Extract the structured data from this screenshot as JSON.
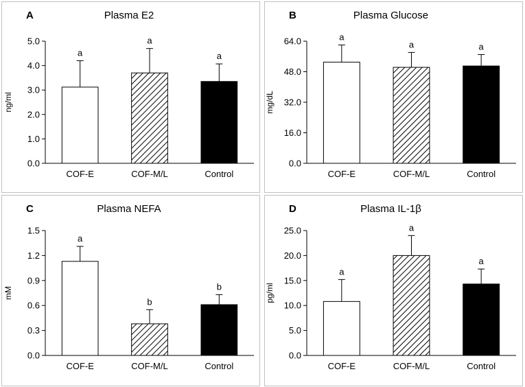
{
  "figure": {
    "colors": {
      "background": "#ffffff",
      "frame": "#bfbfbf",
      "ink": "#000000"
    }
  },
  "chart_data": [
    {
      "panel": "A",
      "type": "bar",
      "title": "Plasma E2",
      "ylabel": "ng/ml",
      "xlabel": "",
      "categories": [
        "COF-E",
        "COF-M/L",
        "Control"
      ],
      "values": [
        3.12,
        3.7,
        3.35
      ],
      "errors": [
        1.08,
        1.0,
        0.72
      ],
      "significance": [
        "a",
        "a",
        "a"
      ],
      "fills": [
        "white",
        "hatch",
        "black"
      ],
      "ylim": [
        0,
        5
      ],
      "yticks": [
        "0.0",
        "1.0",
        "2.0",
        "3.0",
        "4.0",
        "5.0"
      ],
      "grid": false
    },
    {
      "panel": "B",
      "type": "bar",
      "title": "Plasma Glucose",
      "ylabel": "mg/dL",
      "xlabel": "",
      "categories": [
        "COF-E",
        "COF-M/L",
        "Control"
      ],
      "values": [
        53,
        50.3,
        51
      ],
      "errors": [
        9,
        7.8,
        6
      ],
      "significance": [
        "a",
        "a",
        "a"
      ],
      "fills": [
        "white",
        "hatch",
        "black"
      ],
      "ylim": [
        0,
        64
      ],
      "yticks": [
        "0.0",
        "16.0",
        "32.0",
        "48.0",
        "64.0"
      ],
      "grid": false
    },
    {
      "panel": "C",
      "type": "bar",
      "title": "Plasma NEFA",
      "ylabel": "mM",
      "xlabel": "",
      "categories": [
        "COF-E",
        "COF-M/L",
        "Control"
      ],
      "values": [
        1.13,
        0.38,
        0.61
      ],
      "errors": [
        0.18,
        0.17,
        0.12
      ],
      "significance": [
        "a",
        "b",
        "b"
      ],
      "fills": [
        "white",
        "hatch",
        "black"
      ],
      "ylim": [
        0,
        1.5
      ],
      "yticks": [
        "0.0",
        "0.3",
        "0.6",
        "0.9",
        "1.2",
        "1.5"
      ],
      "grid": false
    },
    {
      "panel": "D",
      "type": "bar",
      "title": "Plasma IL-1β",
      "ylabel": "pg/ml",
      "xlabel": "",
      "categories": [
        "COF-E",
        "COF-M/L",
        "Control"
      ],
      "values": [
        10.8,
        20,
        14.3
      ],
      "errors": [
        4.4,
        4,
        3
      ],
      "significance": [
        "a",
        "a",
        "a"
      ],
      "fills": [
        "white",
        "hatch",
        "black"
      ],
      "ylim": [
        0,
        25
      ],
      "yticks": [
        "0.0",
        "5.0",
        "10.0",
        "15.0",
        "20.0",
        "25.0"
      ],
      "grid": false
    }
  ]
}
